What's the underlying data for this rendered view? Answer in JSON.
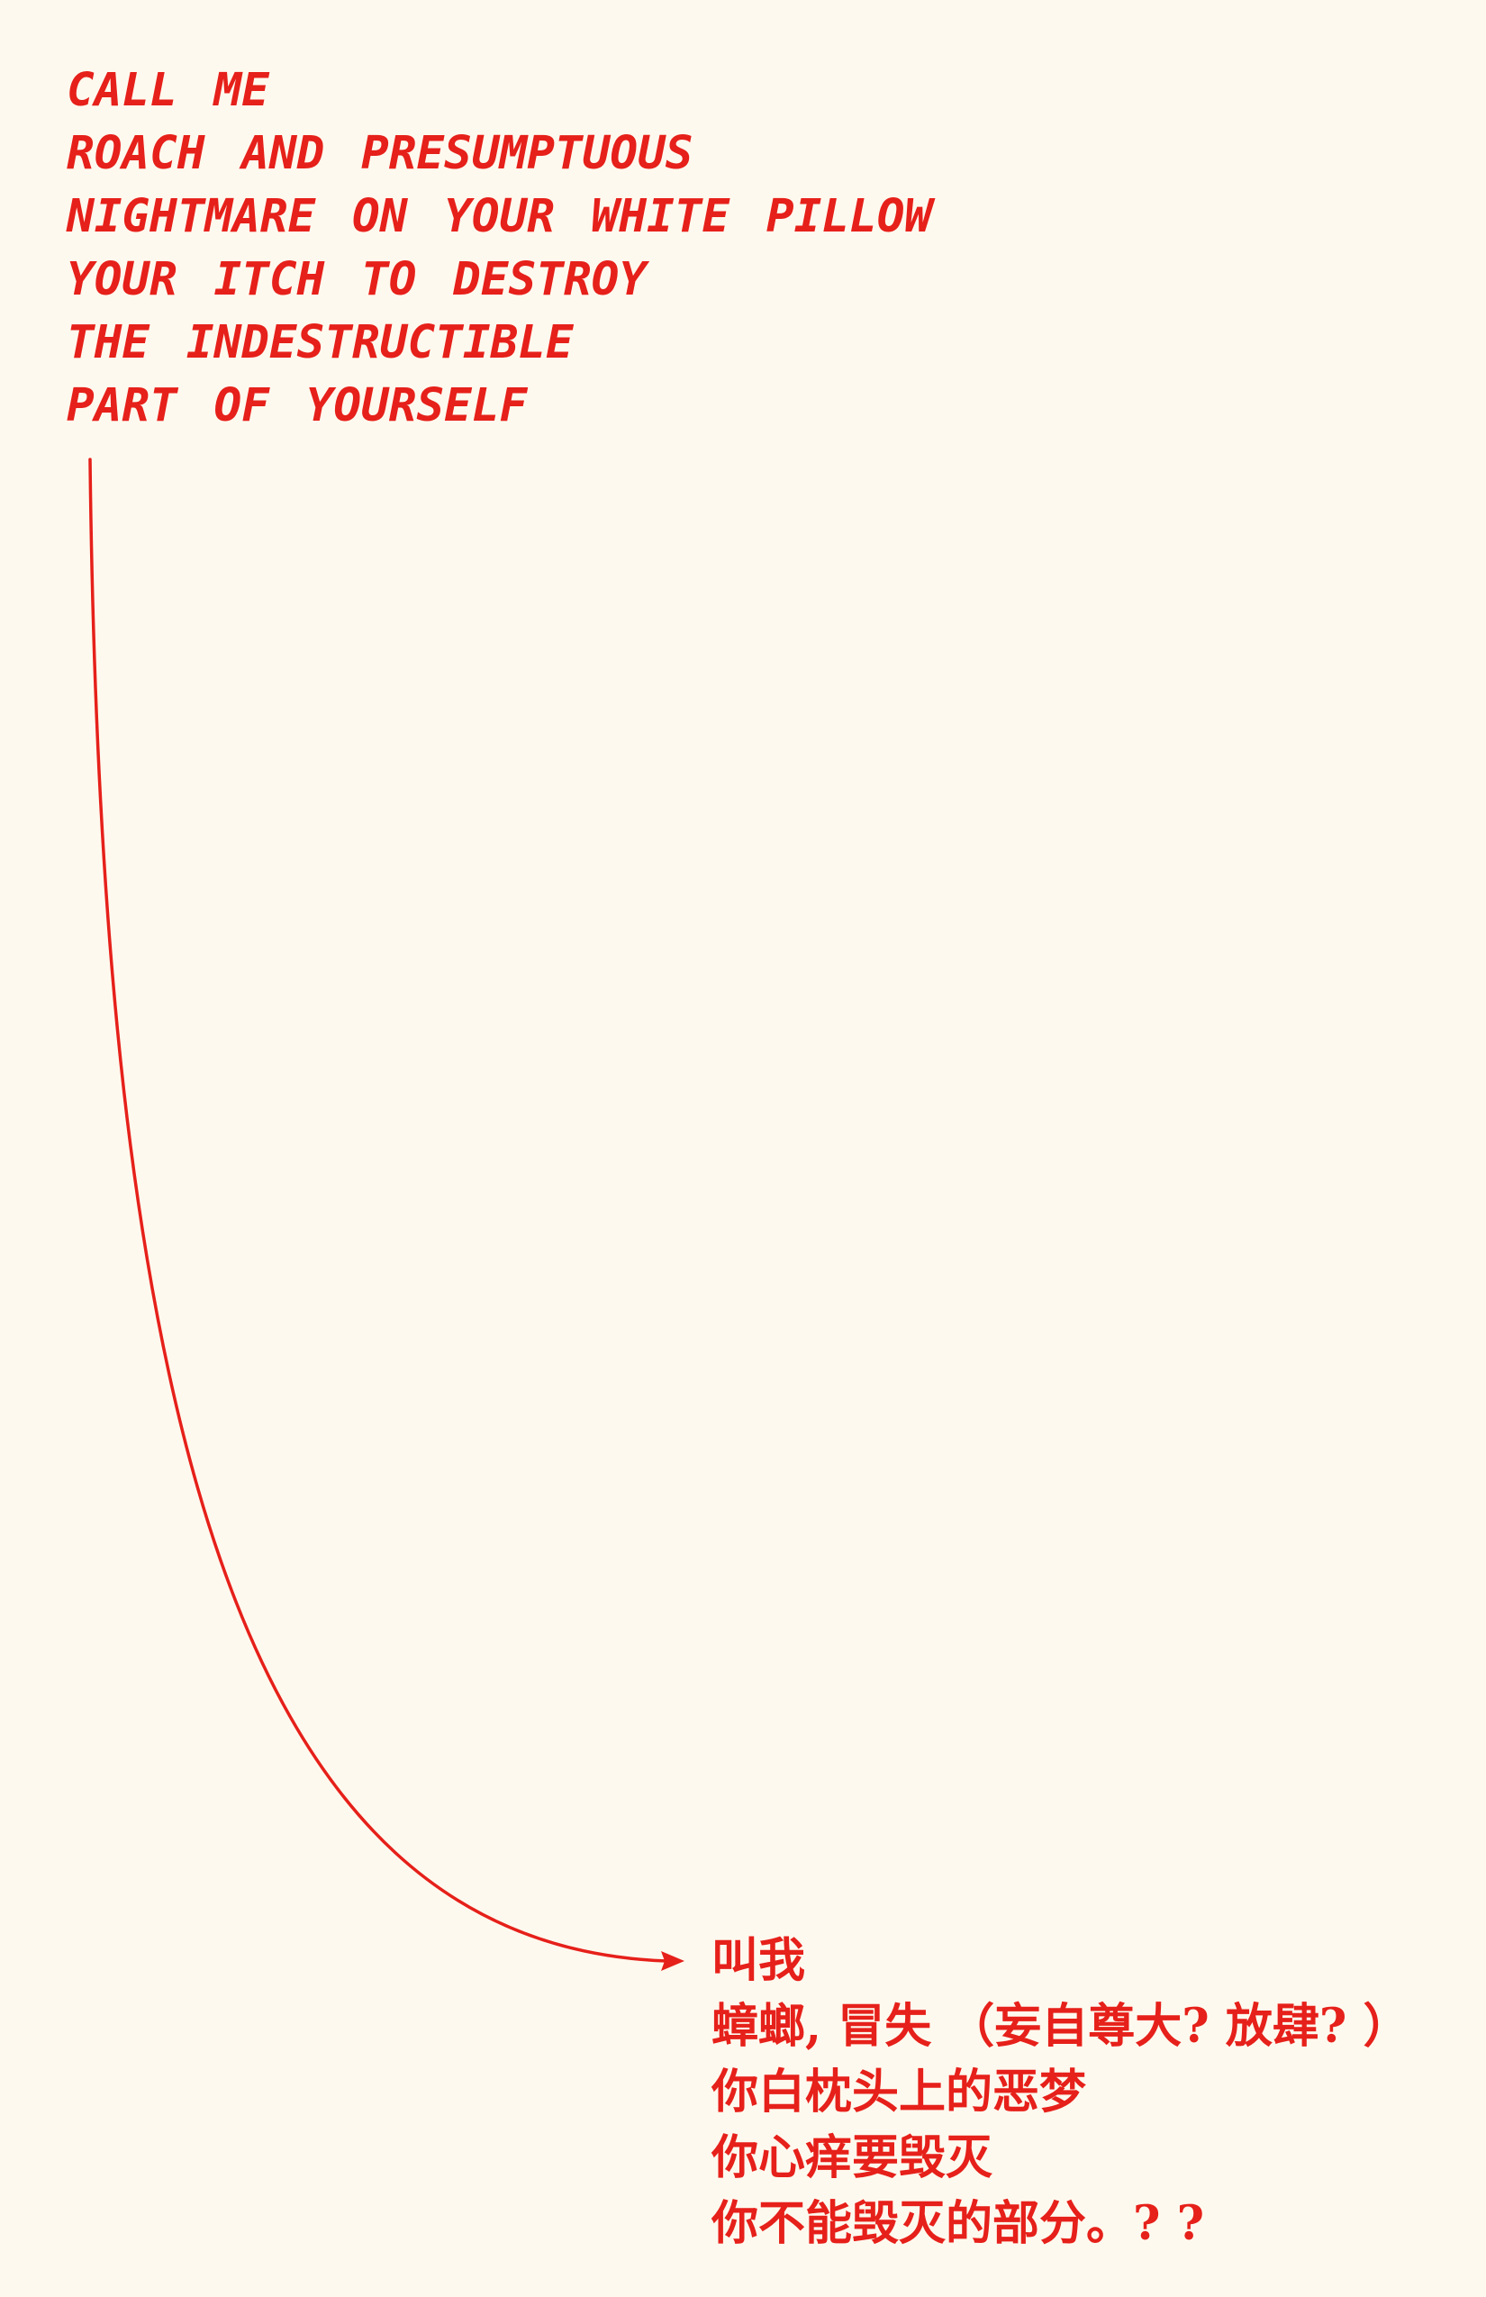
{
  "poem_english": {
    "lines": [
      "CALL  ME",
      "ROACH  AND  PRESUMPTUOUS",
      "NIGHTMARE  ON  YOUR  WHITE  PILLOW",
      "YOUR  ITCH  TO  DESTROY",
      "THE  INDESTRUCTIBLE",
      "PART  OF  YOURSELF"
    ]
  },
  "poem_chinese": {
    "lines": [
      "叫我",
      "蟑螂, 冒失 （妄自尊大? 放肆? ）",
      "你白枕头上的恶梦",
      "你心痒要毁灭",
      "你不能毁灭的部分。? ?"
    ]
  },
  "colors": {
    "background": "#FEF9EE",
    "ink": "#E6201A"
  }
}
